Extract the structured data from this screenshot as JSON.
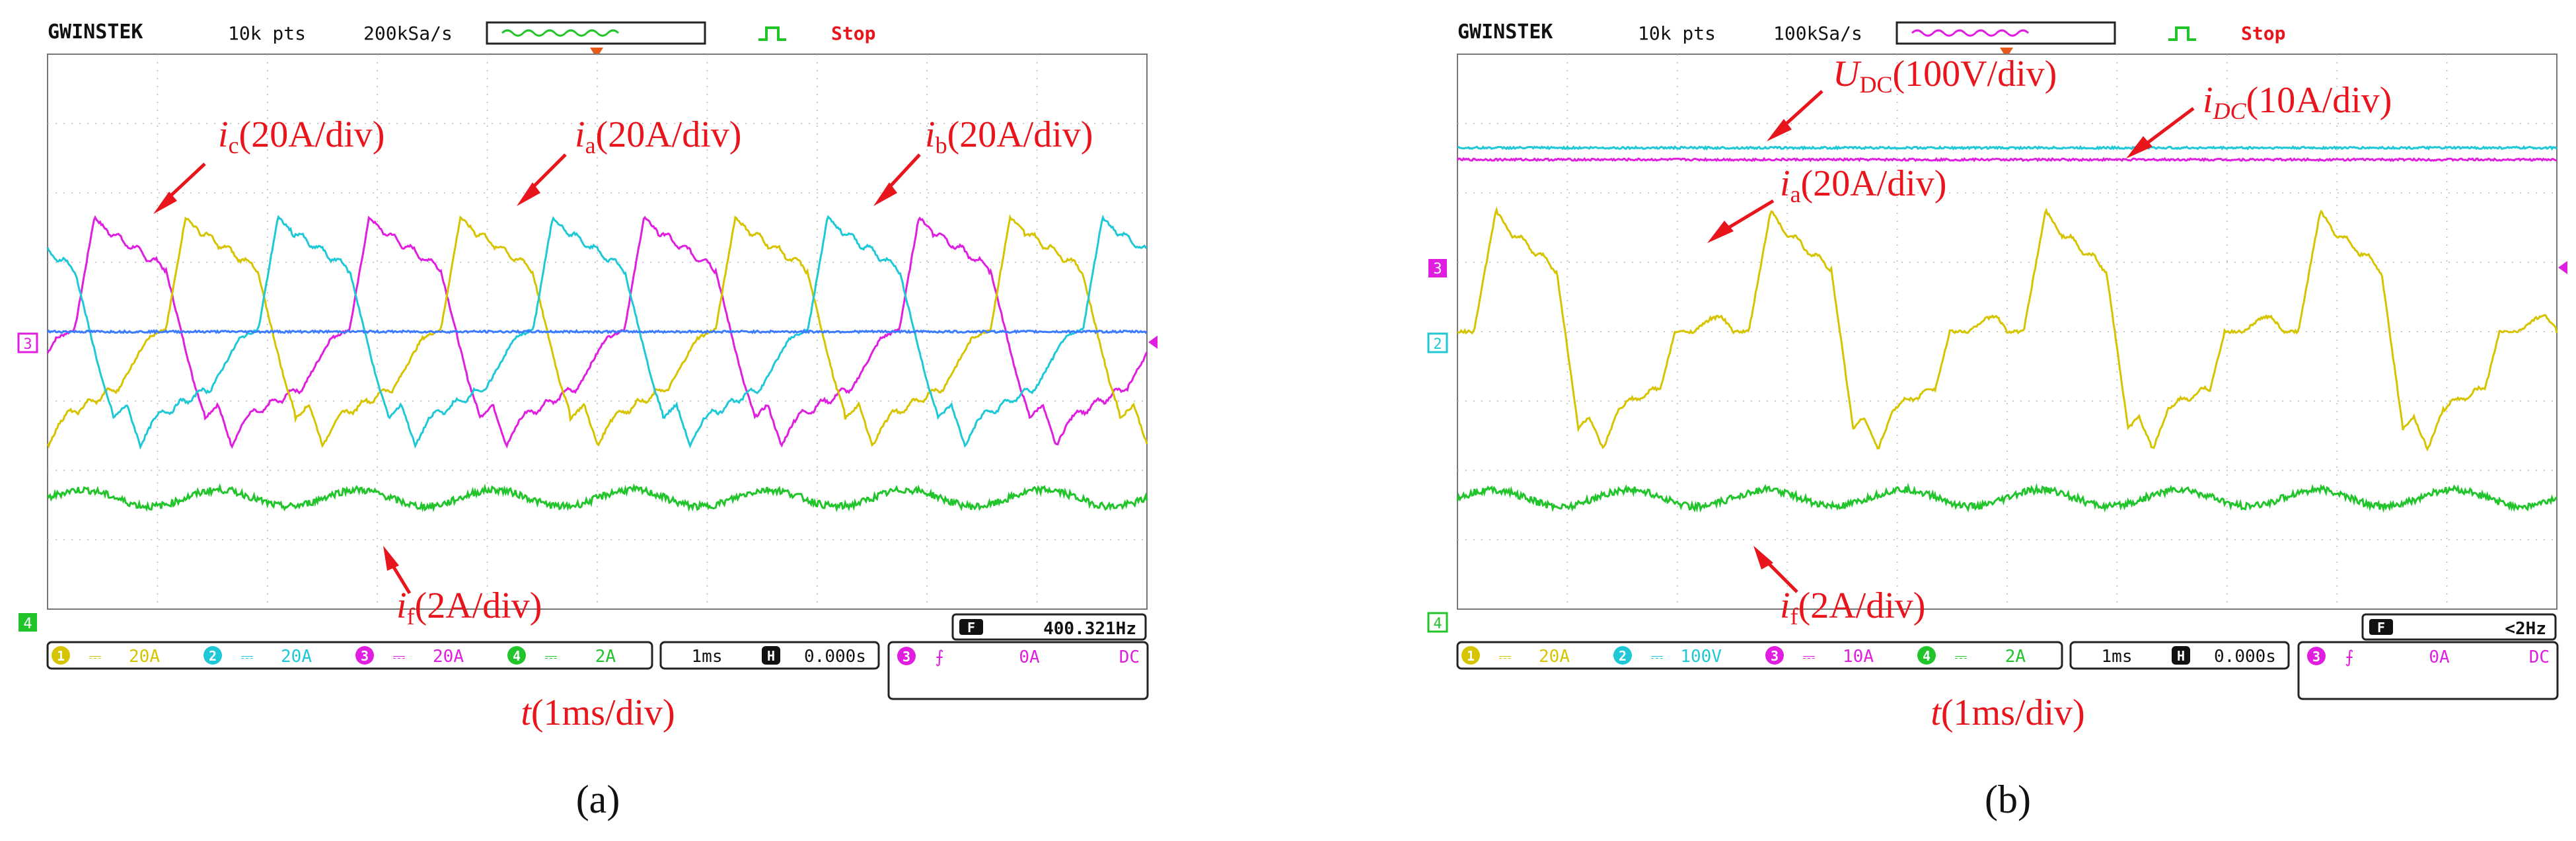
{
  "panels": [
    {
      "id": "a",
      "subfigure_label": "(a)",
      "header": {
        "brand": "GWINSTEK",
        "points": "10k pts",
        "rate": "200kSa/s",
        "status": "Stop"
      },
      "channel_markers": {
        "left_ref": "3",
        "ground": "4"
      },
      "frequency_readout": {
        "box_label": "F",
        "value": "400.321Hz"
      },
      "channel_bar": [
        {
          "num": "1",
          "coupling": "⎓",
          "scale": "20A",
          "color": "#d6c400"
        },
        {
          "num": "2",
          "coupling": "⎓",
          "scale": "20A",
          "color": "#1fc8d6"
        },
        {
          "num": "3",
          "coupling": "⎓",
          "scale": "20A",
          "color": "#e01ee0"
        },
        {
          "num": "4",
          "coupling": "⎓",
          "scale": "2A",
          "color": "#21c42a"
        }
      ],
      "timebase": {
        "div": "1ms",
        "h_label": "H",
        "offset": "0.000s"
      },
      "trigger": {
        "channel": "3",
        "edge": "⨍",
        "level": "0A",
        "coupling": "DC"
      },
      "x_axis_label": {
        "sym": "t",
        "rest": "(1ms/div)"
      },
      "annotations": [
        {
          "sym": "i",
          "sub": "c",
          "rest": "(20A/div)"
        },
        {
          "sym": "i",
          "sub": "a",
          "rest": "(20A/div)"
        },
        {
          "sym": "i",
          "sub": "b",
          "rest": "(20A/div)"
        },
        {
          "sym": "i",
          "sub": "f",
          "rest": "(2A/div)"
        }
      ]
    },
    {
      "id": "b",
      "subfigure_label": "(b)",
      "header": {
        "brand": "GWINSTEK",
        "points": "10k pts",
        "rate": "100kSa/s",
        "status": "Stop"
      },
      "channel_markers": {
        "left_ref": "3",
        "left_ref2": "2",
        "ground": "4"
      },
      "frequency_readout": {
        "box_label": "F",
        "value": "<2Hz"
      },
      "channel_bar": [
        {
          "num": "1",
          "coupling": "⎓",
          "scale": "20A",
          "color": "#d6c400"
        },
        {
          "num": "2",
          "coupling": "⎓",
          "scale": "100V",
          "color": "#1fc8d6"
        },
        {
          "num": "3",
          "coupling": "⎓",
          "scale": "10A",
          "color": "#e01ee0"
        },
        {
          "num": "4",
          "coupling": "⎓",
          "scale": "2A",
          "color": "#21c42a"
        }
      ],
      "timebase": {
        "div": "1ms",
        "h_label": "H",
        "offset": "0.000s"
      },
      "trigger": {
        "channel": "3",
        "edge": "⨍",
        "level": "0A",
        "coupling": "DC"
      },
      "x_axis_label": {
        "sym": "t",
        "rest": "(1ms/div)"
      },
      "annotations": [
        {
          "sym": "U",
          "sub": "DC",
          "rest": "(100V/div)"
        },
        {
          "sym": "i",
          "sub": "DC",
          "rest": "(10A/div)"
        },
        {
          "sym": "i",
          "sub": "a",
          "rest": "(20A/div)"
        },
        {
          "sym": "i",
          "sub": "f",
          "rest": "(2A/div)"
        }
      ]
    }
  ],
  "chart_data": [
    {
      "type": "line",
      "title": "",
      "xlabel": "t(1ms/div)",
      "xlim_div": [
        0,
        10
      ],
      "ylim_div": [
        -4,
        4
      ],
      "grid": true,
      "series": [
        {
          "name": "ic(20A/div)",
          "color": "#e01ee0",
          "kind": "current_a",
          "period_div": 2.5,
          "phase_div": 0.25,
          "amp_div": 1.7
        },
        {
          "name": "ia(20A/div)",
          "color": "#d6c400",
          "kind": "current_a",
          "period_div": 2.5,
          "phase_div": 1.08,
          "amp_div": 1.7
        },
        {
          "name": "ib(20A/div)",
          "color": "#1fc8d6",
          "kind": "current_a",
          "period_div": 2.5,
          "phase_div": 1.92,
          "amp_div": 1.7
        },
        {
          "name": "if(2A/div)",
          "color": "#21c42a",
          "kind": "ripple",
          "offset_div": -2.4,
          "period_div": 1.25,
          "amp_div": 0.12
        },
        {
          "name": "zero",
          "color": "#3a7bff",
          "kind": "flat",
          "offset_div": 0
        }
      ]
    },
    {
      "type": "line",
      "title": "",
      "xlabel": "t(1ms/div)",
      "xlim_div": [
        0,
        10
      ],
      "ylim_div": [
        -4,
        4
      ],
      "grid": true,
      "series": [
        {
          "name": "UDC(100V/div)",
          "color": "#1fc8d6",
          "kind": "flat",
          "offset_div": 2.65
        },
        {
          "name": "iDC(10A/div)",
          "color": "#e01ee0",
          "kind": "flat",
          "offset_div": 2.48
        },
        {
          "name": "ia(20A/div)",
          "color": "#d6c400",
          "kind": "current_b",
          "period_div": 2.5,
          "phase_div": 0.15,
          "amp_div": 1.75,
          "offset_div": 0
        },
        {
          "name": "if(2A/div)",
          "color": "#21c42a",
          "kind": "ripple",
          "offset_div": -2.4,
          "period_div": 1.25,
          "amp_div": 0.12
        }
      ]
    }
  ]
}
